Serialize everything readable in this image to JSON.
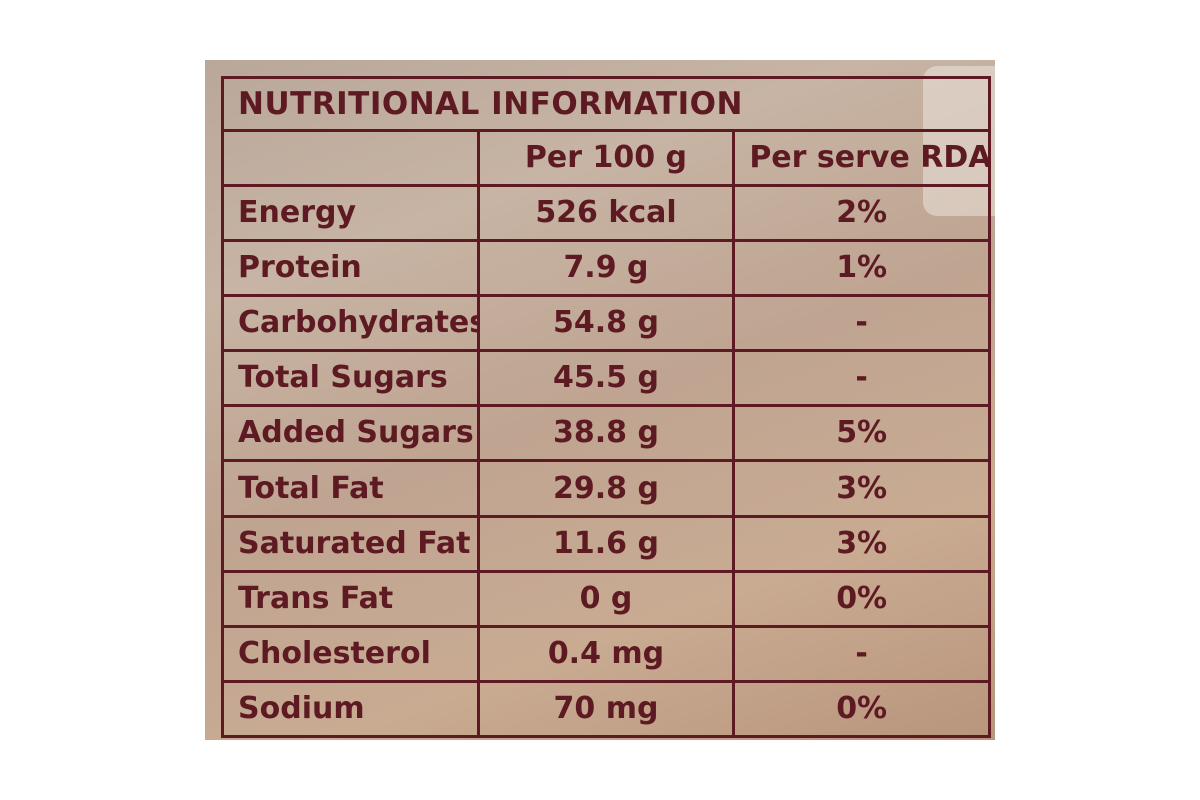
{
  "label": {
    "title": "NUTRITIONAL INFORMATION",
    "headers": {
      "nutrient": "",
      "per_100g": "Per 100 g",
      "per_serve_rda": "Per serve RDA%"
    },
    "rows": [
      {
        "nutrient": "Energy",
        "per_100g": "526 kcal",
        "rda": "2%"
      },
      {
        "nutrient": "Protein",
        "per_100g": "7.9 g",
        "rda": "1%"
      },
      {
        "nutrient": "Carbohydrates",
        "per_100g": "54.8 g",
        "rda": "-"
      },
      {
        "nutrient": "Total Sugars",
        "per_100g": "45.5 g",
        "rda": "-"
      },
      {
        "nutrient": "Added Sugars",
        "per_100g": "38.8 g",
        "rda": "5%"
      },
      {
        "nutrient": "Total Fat",
        "per_100g": "29.8 g",
        "rda": "3%"
      },
      {
        "nutrient": "Saturated Fat",
        "per_100g": "11.6 g",
        "rda": "3%"
      },
      {
        "nutrient": "Trans Fat",
        "per_100g": "0 g",
        "rda": "0%"
      },
      {
        "nutrient": "Cholesterol",
        "per_100g": "0.4 mg",
        "rda": "-"
      },
      {
        "nutrient": "Sodium",
        "per_100g": "70 mg",
        "rda": "0%"
      }
    ]
  },
  "colors": {
    "ink": "#5e1a22",
    "panel": "#c2a896",
    "background": "#ffffff"
  }
}
